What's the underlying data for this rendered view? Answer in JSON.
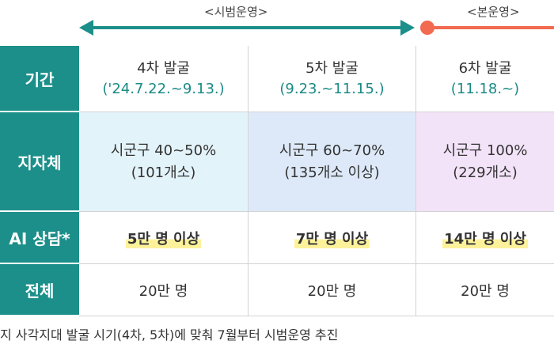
{
  "phases": {
    "pilot_label": "<시범운영>",
    "main_label": "<본운영>",
    "pilot_color": "#1c8f8a",
    "main_color": "#f26a4f"
  },
  "row_headers": [
    "기간",
    "지자체",
    "AI 상담*",
    "전체"
  ],
  "columns": [
    {
      "round": "4차 발굴",
      "dates": "('24.7.22.~9.13.)",
      "region": "시군구 40~50%",
      "count": "(101개소)",
      "ai": "5만 명 이상",
      "total": "20만 명"
    },
    {
      "round": "5차 발굴",
      "dates": "(9.23.~11.15.)",
      "region": "시군구 60~70%",
      "count": "(135개소 이상)",
      "ai": "7만 명 이상",
      "total": "20만 명"
    },
    {
      "round": "6차 발굴",
      "dates": "(11.18.~)",
      "region": "시군구 100%",
      "count": "(229개소)",
      "ai": "14만 명 이상",
      "total": "20만 명"
    }
  ],
  "footnote": "지 사각지대 발굴 시기(4차, 5차)에 맞춰 7월부터 시범운영 추진"
}
